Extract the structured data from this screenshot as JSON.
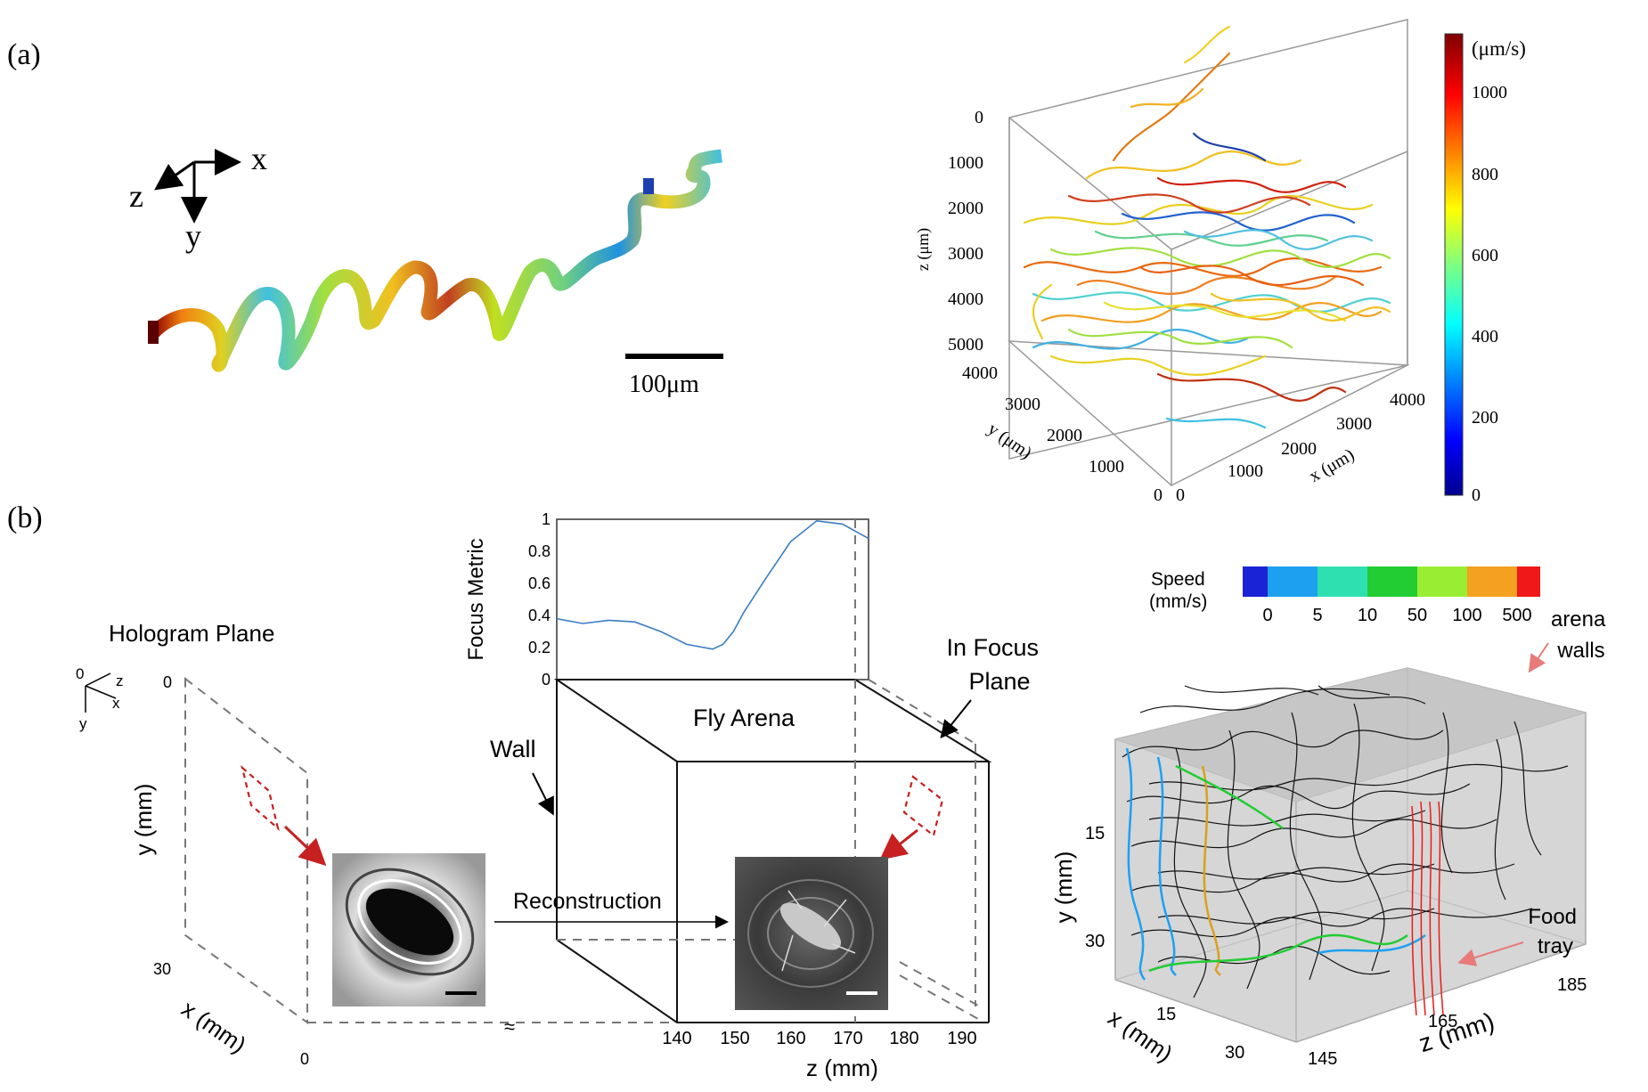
{
  "panel_a": {
    "label": "(a)",
    "axes_labels": {
      "x": "x",
      "y": "y",
      "z": "z"
    },
    "scale_bar": "100μm",
    "plot3d": {
      "z_label": "z (μm)",
      "y_label": "y (μm)",
      "x_label": "x (μm)",
      "z_ticks": [
        "0",
        "1000",
        "2000",
        "3000",
        "4000",
        "5000"
      ],
      "y_ticks": [
        "4000",
        "3000",
        "2000",
        "1000",
        "0"
      ],
      "x_ticks": [
        "0",
        "1000",
        "2000",
        "3000",
        "4000"
      ]
    },
    "colorbar": {
      "unit": "(μm/s)",
      "ticks": [
        "1000",
        "800",
        "600",
        "400",
        "200",
        "0"
      ],
      "range": [
        0,
        1100
      ]
    }
  },
  "panel_b": {
    "label": "(b)",
    "hologram_plane_title": "Hologram Plane",
    "mini_axes": {
      "zero": "0",
      "z": "z",
      "x": "x",
      "y": "y"
    },
    "y_axis_label": "y (mm)",
    "y_ticks": [
      "0",
      "30"
    ],
    "x_axis_label": "x (mm)",
    "x_tick_zero": "0",
    "focus_chart": {
      "ylabel": "Focus Metric",
      "y_ticks": [
        "0",
        "0.2",
        "0.4",
        "0.6",
        "0.8",
        "1"
      ],
      "line_color": "#3b7dc4"
    },
    "fly_arena_label": "Fly Arena",
    "wall_label": "Wall",
    "in_focus_plane_label": "In Focus\nPlane",
    "reconstruction_label": "Reconstruction",
    "break_symbol": "≈",
    "z_axis_label": "z (mm)",
    "z_ticks": [
      "140",
      "150",
      "160",
      "170",
      "180",
      "190"
    ],
    "speed_legend": {
      "title_line1": "Speed",
      "title_line2": "(mm/s)",
      "labels": [
        "0",
        "5",
        "10",
        "50",
        "100",
        "500"
      ],
      "colors": [
        "#1a23d6",
        "#1ea0f0",
        "#2ee0b0",
        "#22cc33",
        "#99ee33",
        "#f4a020",
        "#f01818"
      ]
    },
    "arena_walls_label": "arena\nwalls",
    "food_tray_label": "Food\ntray",
    "plot3d_b": {
      "y_label": "y (mm)",
      "y_ticks": [
        "15",
        "30"
      ],
      "x_label": "x (mm)",
      "x_ticks": [
        "15",
        "30"
      ],
      "z_label": "z (mm)",
      "z_ticks": [
        "145",
        "165",
        "185"
      ]
    }
  },
  "chart_data": [
    {
      "type": "line",
      "title": "",
      "xlabel": "z (mm)",
      "ylabel": "Focus Metric",
      "x": [
        140,
        145,
        150,
        155,
        160,
        165,
        170,
        172,
        174,
        176,
        180,
        185,
        190,
        195,
        200
      ],
      "y": [
        0.38,
        0.35,
        0.37,
        0.36,
        0.3,
        0.22,
        0.19,
        0.22,
        0.3,
        0.42,
        0.62,
        0.86,
        0.99,
        0.97,
        0.88
      ],
      "ylim": [
        0,
        1
      ]
    }
  ]
}
